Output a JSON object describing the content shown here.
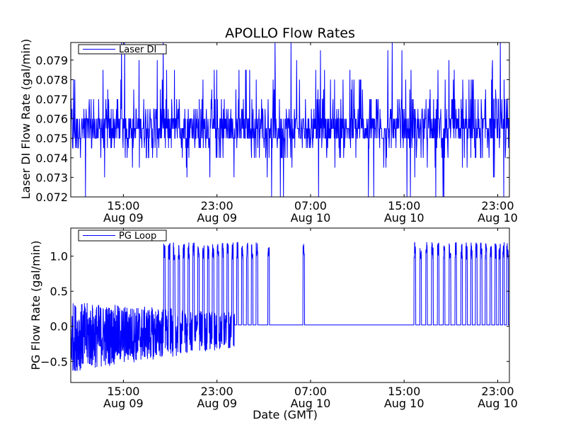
{
  "chart_data": [
    {
      "type": "line",
      "title": "APOLLO Flow Rates",
      "xlabel": "",
      "ylabel": "Laser DI Flow Rate (gal/min)",
      "ylim": [
        0.072,
        0.0799
      ],
      "yticks": [
        "0.072",
        "0.073",
        "0.074",
        "0.075",
        "0.076",
        "0.077",
        "0.078",
        "0.079"
      ],
      "xlim": [
        "2010-08-09 10:30",
        "2010-08-11 00:00"
      ],
      "xticks": [
        {
          "time": "2010-08-09 15:00",
          "line1": "15:00",
          "line2": "Aug 09"
        },
        {
          "time": "2010-08-09 23:00",
          "line1": "23:00",
          "line2": "Aug 09"
        },
        {
          "time": "2010-08-10 07:00",
          "line1": "07:00",
          "line2": "Aug 10"
        },
        {
          "time": "2010-08-10 15:00",
          "line1": "15:00",
          "line2": "Aug 10"
        },
        {
          "time": "2010-08-10 23:00",
          "line1": "23:00",
          "line2": "Aug 10"
        }
      ],
      "grid": false,
      "legend_position": "top-left",
      "series": [
        {
          "name": "Laser DI",
          "color": "#0000ff",
          "baseline": 0.0755,
          "typical_range": [
            0.074,
            0.077
          ],
          "peak_range": [
            0.073,
            0.079
          ],
          "minimum": 0.072,
          "maximum": 0.0799
        }
      ]
    },
    {
      "type": "line",
      "title": "",
      "xlabel": "Date (GMT)",
      "ylabel": "PG Flow Rate (gal/min)",
      "ylim": [
        -0.8,
        1.4
      ],
      "yticks": [
        "−0.5",
        "0.0",
        "0.5",
        "1.0"
      ],
      "xlim": [
        "2010-08-09 10:30",
        "2010-08-11 00:00"
      ],
      "xticks": [
        {
          "time": "2010-08-09 15:00",
          "line1": "15:00",
          "line2": "Aug 09"
        },
        {
          "time": "2010-08-09 23:00",
          "line1": "23:00",
          "line2": "Aug 09"
        },
        {
          "time": "2010-08-10 07:00",
          "line1": "07:00",
          "line2": "Aug 10"
        },
        {
          "time": "2010-08-10 15:00",
          "line1": "15:00",
          "line2": "Aug 10"
        },
        {
          "time": "2010-08-10 23:00",
          "line1": "23:00",
          "line2": "Aug 10"
        }
      ],
      "grid": false,
      "legend_position": "top-left",
      "series": [
        {
          "name": "PG Loop",
          "color": "#0000ff",
          "noisy_segment": {
            "start": "2010-08-09 10:30",
            "end": "2010-08-10 00:30",
            "range": [
              -0.65,
              0.35
            ]
          },
          "idle_level": 0.02,
          "pulse_peak": 1.2,
          "pulse_times": [
            "2010-08-09 18:30",
            "2010-08-09 18:55",
            "2010-08-09 19:20",
            "2010-08-09 19:45",
            "2010-08-09 20:10",
            "2010-08-09 20:35",
            "2010-08-09 21:00",
            "2010-08-09 21:25",
            "2010-08-09 21:50",
            "2010-08-09 22:15",
            "2010-08-09 22:40",
            "2010-08-09 23:05",
            "2010-08-09 23:30",
            "2010-08-09 23:55",
            "2010-08-10 00:20",
            "2010-08-10 00:45",
            "2010-08-10 01:10",
            "2010-08-10 01:35",
            "2010-08-10 02:00",
            "2010-08-10 02:25",
            "2010-08-10 03:25",
            "2010-08-10 06:25",
            "2010-08-10 15:55",
            "2010-08-10 16:25",
            "2010-08-10 16:55",
            "2010-08-10 17:25",
            "2010-08-10 17:55",
            "2010-08-10 18:25",
            "2010-08-10 18:55",
            "2010-08-10 19:25",
            "2010-08-10 19:55",
            "2010-08-10 20:20",
            "2010-08-10 20:45",
            "2010-08-10 21:10",
            "2010-08-10 21:35",
            "2010-08-10 22:00",
            "2010-08-10 22:25",
            "2010-08-10 22:50",
            "2010-08-10 23:10",
            "2010-08-10 23:30",
            "2010-08-10 23:50"
          ]
        }
      ]
    }
  ]
}
